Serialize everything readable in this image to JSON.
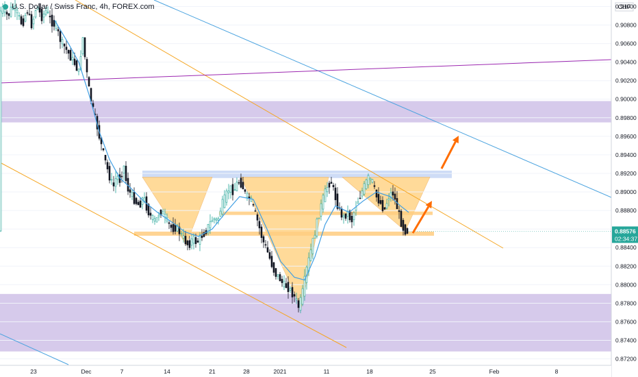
{
  "header": {
    "symbol_label": "U.S. Dollar / Swiss Franc",
    "timeframe": "4h",
    "exchange": "FOREX.com"
  },
  "axis": {
    "currency": "CHF"
  },
  "price_tag": {
    "price": "0.88576",
    "countdown": "02:34:37"
  },
  "colors": {
    "up": "#26a69a",
    "down": "#131722",
    "candle_body": "#2a2e39",
    "zone_purple": "#d1c4e9",
    "zone_blue": "#c5d6f5",
    "triangle_fill": "#ffd180",
    "level_band": "#ffcc80",
    "trendline_orange": "#f5a623",
    "trendline_blue": "#4aa3df",
    "trendline_purple": "#9c27b0",
    "ma_line": "#3f9ee3",
    "arrow": "#ff6d00",
    "price_tag_bg": "#26a69a"
  },
  "chart_data": {
    "type": "candlestick",
    "title": "U.S. Dollar / Swiss Franc, 4h, FOREX.com",
    "ylabel": "CHF",
    "ylim": [
      0.8713,
      0.9107
    ],
    "y_ticks": [
      "0.91000",
      "0.90800",
      "0.90600",
      "0.90400",
      "0.90200",
      "0.90000",
      "0.89800",
      "0.89600",
      "0.89400",
      "0.89200",
      "0.89000",
      "0.88800",
      "0.88600",
      "0.88400",
      "0.88200",
      "0.88000",
      "0.87800",
      "0.87600",
      "0.87400",
      "0.87200"
    ],
    "x_ticks": [
      "23",
      "Dec",
      "7",
      "14",
      "21",
      "28",
      "2021",
      "11",
      "18",
      "25",
      "Feb",
      "8"
    ],
    "last_price": 0.88576,
    "price_path": [
      [
        0,
        0.9093
      ],
      [
        6,
        0.9098
      ],
      [
        13,
        0.9089
      ],
      [
        20,
        0.9101
      ],
      [
        27,
        0.9092
      ],
      [
        34,
        0.908
      ],
      [
        41,
        0.9097
      ],
      [
        48,
        0.9079
      ],
      [
        55,
        0.9102
      ],
      [
        62,
        0.9088
      ],
      [
        69,
        0.9096
      ],
      [
        76,
        0.9084
      ],
      [
        83,
        0.9079
      ],
      [
        90,
        0.9063
      ],
      [
        97,
        0.9055
      ],
      [
        104,
        0.9046
      ],
      [
        111,
        0.9038
      ],
      [
        117,
        0.9028
      ],
      [
        122,
        0.907
      ],
      [
        127,
        0.9035
      ],
      [
        132,
        0.9008
      ],
      [
        137,
        0.899
      ],
      [
        142,
        0.8975
      ],
      [
        147,
        0.8958
      ],
      [
        152,
        0.8943
      ],
      [
        157,
        0.8928
      ],
      [
        162,
        0.8915
      ],
      [
        167,
        0.8905
      ],
      [
        172,
        0.8918
      ],
      [
        177,
        0.8912
      ],
      [
        182,
        0.893
      ],
      [
        187,
        0.8905
      ],
      [
        193,
        0.8897
      ],
      [
        199,
        0.889
      ],
      [
        205,
        0.8885
      ],
      [
        211,
        0.8895
      ],
      [
        217,
        0.888
      ],
      [
        223,
        0.8872
      ],
      [
        229,
        0.8868
      ],
      [
        235,
        0.888
      ],
      [
        241,
        0.8875
      ],
      [
        247,
        0.8866
      ],
      [
        253,
        0.886
      ],
      [
        259,
        0.8862
      ],
      [
        265,
        0.8855
      ],
      [
        271,
        0.8848
      ],
      [
        277,
        0.8842
      ],
      [
        283,
        0.885
      ],
      [
        289,
        0.8845
      ],
      [
        295,
        0.8852
      ],
      [
        301,
        0.8856
      ],
      [
        307,
        0.8865
      ],
      [
        313,
        0.8872
      ],
      [
        319,
        0.8868
      ],
      [
        325,
        0.8885
      ],
      [
        331,
        0.8895
      ],
      [
        337,
        0.8905
      ],
      [
        343,
        0.89
      ],
      [
        349,
        0.8912
      ],
      [
        355,
        0.8908
      ],
      [
        361,
        0.8895
      ],
      [
        367,
        0.8893
      ],
      [
        373,
        0.888
      ],
      [
        379,
        0.8865
      ],
      [
        385,
        0.8848
      ],
      [
        391,
        0.8838
      ],
      [
        397,
        0.8825
      ],
      [
        403,
        0.8812
      ],
      [
        409,
        0.8808
      ],
      [
        415,
        0.88
      ],
      [
        421,
        0.8798
      ],
      [
        427,
        0.8792
      ],
      [
        433,
        0.8785
      ],
      [
        438,
        0.8775
      ],
      [
        443,
        0.879
      ],
      [
        449,
        0.8815
      ],
      [
        455,
        0.8835
      ],
      [
        461,
        0.8855
      ],
      [
        467,
        0.8875
      ],
      [
        473,
        0.8892
      ],
      [
        479,
        0.8905
      ],
      [
        485,
        0.8912
      ],
      [
        491,
        0.8895
      ],
      [
        497,
        0.888
      ],
      [
        503,
        0.8872
      ],
      [
        509,
        0.8878
      ],
      [
        515,
        0.8868
      ],
      [
        521,
        0.8885
      ],
      [
        527,
        0.8895
      ],
      [
        533,
        0.8905
      ],
      [
        539,
        0.8915
      ],
      [
        545,
        0.8912
      ],
      [
        551,
        0.8895
      ],
      [
        557,
        0.8888
      ],
      [
        563,
        0.888
      ],
      [
        569,
        0.8895
      ],
      [
        575,
        0.89
      ],
      [
        581,
        0.8885
      ],
      [
        587,
        0.8868
      ],
      [
        592,
        0.8858
      ],
      [
        597,
        0.8858
      ]
    ],
    "ma_path": [
      [
        80,
        0.9085
      ],
      [
        100,
        0.906
      ],
      [
        115,
        0.904
      ],
      [
        130,
        0.9005
      ],
      [
        145,
        0.8965
      ],
      [
        160,
        0.8935
      ],
      [
        175,
        0.8915
      ],
      [
        190,
        0.8905
      ],
      [
        210,
        0.889
      ],
      [
        230,
        0.8878
      ],
      [
        250,
        0.8868
      ],
      [
        270,
        0.8857
      ],
      [
        290,
        0.8852
      ],
      [
        310,
        0.886
      ],
      [
        330,
        0.8878
      ],
      [
        350,
        0.8895
      ],
      [
        370,
        0.8892
      ],
      [
        390,
        0.886
      ],
      [
        410,
        0.8825
      ],
      [
        430,
        0.8808
      ],
      [
        445,
        0.8805
      ],
      [
        460,
        0.883
      ],
      [
        475,
        0.8865
      ],
      [
        490,
        0.8885
      ],
      [
        510,
        0.8878
      ],
      [
        530,
        0.889
      ],
      [
        550,
        0.89
      ],
      [
        570,
        0.8895
      ],
      [
        585,
        0.8885
      ],
      [
        597,
        0.8878
      ]
    ],
    "zones": [
      {
        "kind": "resistance",
        "y0": 0.8998,
        "y1": 0.8975
      },
      {
        "kind": "support",
        "y0": 0.879,
        "y1": 0.8728
      },
      {
        "kind": "neckline",
        "y0": 0.8923,
        "y1": 0.8915
      }
    ],
    "levels": [
      0.8877,
      0.8855
    ]
  }
}
